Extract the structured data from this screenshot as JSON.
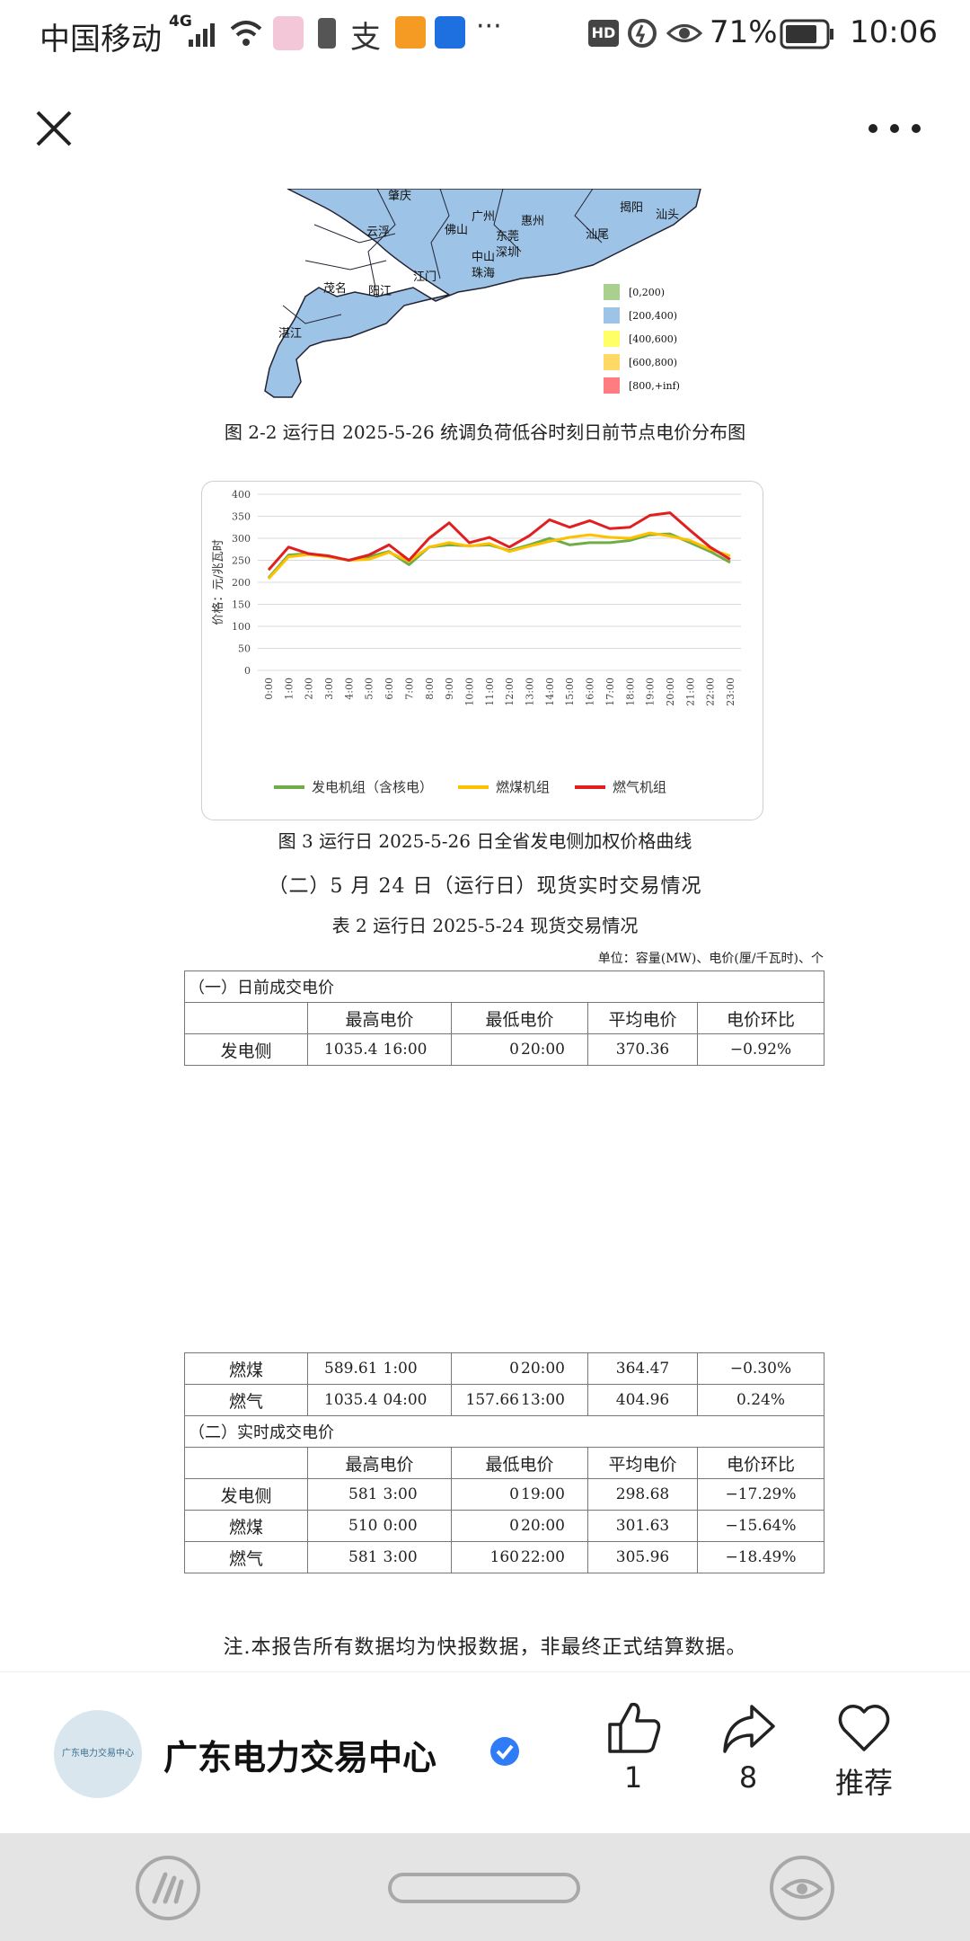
{
  "status_bar": {
    "carrier": "中国移动",
    "network": "4G",
    "battery": "71%",
    "time": "10:06"
  },
  "content": {
    "map_legend": [
      "[0,200)",
      "[200,400)",
      "[400,600)",
      "[600,800)",
      "[800,+inf)"
    ],
    "map_legend_colors": [
      "#a9d08e",
      "#9dc3e6",
      "#ffff66",
      "#ffd966",
      "#ff7c80"
    ],
    "map_city_labels": [
      "肇庆",
      "广州",
      "揭阳",
      "汕头",
      "云浮",
      "佛山",
      "惠州",
      "东莞",
      "汕尾",
      "茂名",
      "阳江",
      "江门",
      "中山",
      "深圳",
      "珠海",
      "湛江"
    ],
    "map_caption": "图 2-2 运行日 2025-5-26 统调负荷低谷时刻日前节点电价分布图",
    "chart_caption": "图 3 运行日 2025-5-26 日全省发电侧加权价格曲线",
    "section_heading": "（二）5 月 24 日（运行日）现货实时交易情况",
    "table_title": "表 2 运行日 2025-5-24 现货交易情况",
    "table_unit": "单位：容量(MW)、电价(厘/千瓦时)、个",
    "table_top": {
      "section1": "（一）日前成交电价",
      "headers": [
        "最高电价",
        "最低电价",
        "平均电价",
        "电价环比"
      ],
      "rows": [
        {
          "name": "发电侧",
          "max": "1035.4",
          "max_t": "16:00",
          "min": "0",
          "min_t": "20:00",
          "avg": "370.36",
          "chg": "−0.92%"
        }
      ]
    },
    "table_bottom": {
      "rows1": [
        {
          "name": "燃煤",
          "max": "589.61",
          "max_t": "1:00",
          "min": "0",
          "min_t": "20:00",
          "avg": "364.47",
          "chg": "−0.30%"
        },
        {
          "name": "燃气",
          "max": "1035.4",
          "max_t": "04:00",
          "min": "157.66",
          "min_t": "13:00",
          "avg": "404.96",
          "chg": "0.24%"
        }
      ],
      "section2": "（二）实时成交电价",
      "headers": [
        "最高电价",
        "最低电价",
        "平均电价",
        "电价环比"
      ],
      "rows2": [
        {
          "name": "发电侧",
          "max": "581",
          "max_t": "3:00",
          "min": "0",
          "min_t": "19:00",
          "avg": "298.68",
          "chg": "−17.29%"
        },
        {
          "name": "燃煤",
          "max": "510",
          "max_t": "0:00",
          "min": "0",
          "min_t": "20:00",
          "avg": "301.63",
          "chg": "−15.64%"
        },
        {
          "name": "燃气",
          "max": "581",
          "max_t": "3:00",
          "min": "160",
          "min_t": "22:00",
          "avg": "305.96",
          "chg": "−18.49%"
        }
      ]
    },
    "footnote": "注.本报告所有数据均为快报数据，非最终正式结算数据。"
  },
  "chart_data": {
    "type": "line",
    "title": "",
    "xlabel": "",
    "ylabel": "价格：元/兆瓦时",
    "ylim": [
      0,
      400
    ],
    "yticks": [
      "0",
      "50",
      "100",
      "150",
      "200",
      "250",
      "300",
      "350",
      "400"
    ],
    "categories": [
      "0:00",
      "1:00",
      "2:00",
      "3:00",
      "4:00",
      "5:00",
      "6:00",
      "7:00",
      "8:00",
      "9:00",
      "10:00",
      "11:00",
      "12:00",
      "13:00",
      "14:00",
      "15:00",
      "16:00",
      "17:00",
      "18:00",
      "19:00",
      "20:00",
      "21:00",
      "22:00",
      "23:00"
    ],
    "series": [
      {
        "name": "发电机组（含核电）",
        "color": "#70ad47",
        "values": [
          210,
          262,
          265,
          258,
          250,
          258,
          270,
          240,
          280,
          285,
          283,
          285,
          272,
          285,
          300,
          285,
          290,
          290,
          295,
          308,
          310,
          290,
          270,
          245
        ]
      },
      {
        "name": "燃煤机组",
        "color": "#ffc000",
        "values": [
          208,
          258,
          263,
          258,
          250,
          252,
          268,
          248,
          280,
          290,
          282,
          288,
          270,
          282,
          293,
          302,
          308,
          302,
          300,
          312,
          305,
          295,
          275,
          260
        ]
      },
      {
        "name": "燃气机组",
        "color": "#e02020",
        "values": [
          228,
          280,
          265,
          260,
          250,
          262,
          285,
          250,
          300,
          335,
          290,
          302,
          280,
          306,
          342,
          325,
          340,
          322,
          325,
          352,
          358,
          318,
          280,
          252
        ]
      }
    ],
    "legend_position": "bottom",
    "grid": true
  },
  "author_bar": {
    "avatar_text": "广东电力交易中心",
    "name": "广东电力交易中心",
    "like_count": "1",
    "share_count": "8",
    "recommend_label": "推荐"
  }
}
